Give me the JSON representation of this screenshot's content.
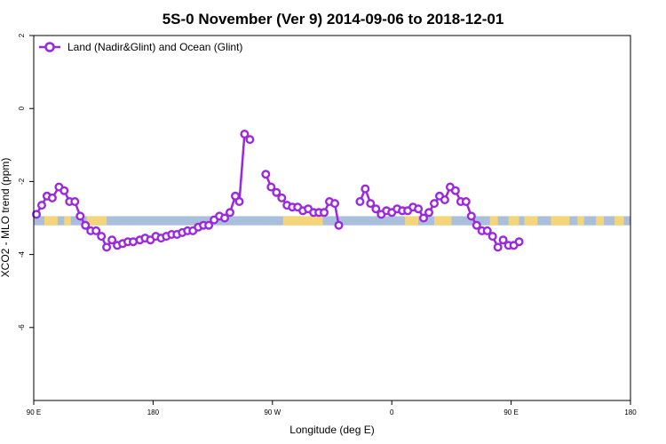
{
  "chart_data": {
    "type": "line",
    "title": "5S-0 November (Ver 9)   2014-09-06 to 2018-12-01",
    "xlabel": "Longitude (deg E)",
    "ylabel": "XCO2 - MLO trend (ppm)",
    "x_ticks": [
      {
        "value": 90,
        "label": "90 E"
      },
      {
        "value": 180,
        "label": "180"
      },
      {
        "value": 270,
        "label": "90 W"
      },
      {
        "value": 360,
        "label": "0"
      },
      {
        "value": 450,
        "label": "90 E"
      },
      {
        "value": 540,
        "label": "180"
      }
    ],
    "y_ticks": [
      {
        "value": 2,
        "label": "2"
      },
      {
        "value": 0,
        "label": "0"
      },
      {
        "value": -2,
        "label": "-2"
      },
      {
        "value": -4,
        "label": "-4"
      },
      {
        "value": -6,
        "label": "-6"
      }
    ],
    "xlim": [
      90,
      540
    ],
    "ylim": [
      -8,
      2
    ],
    "legend": {
      "position": "top-left",
      "entries": [
        "Land (Nadir&Glint) and Ocean (Glint)"
      ]
    },
    "colors": {
      "series": "#9b27e0",
      "ocean_band": "#a9bfdc",
      "land_band": "#f5d57a"
    },
    "band": {
      "y_top": -2.95,
      "y_bottom": -3.2
    },
    "land_segments": [
      [
        98,
        108
      ],
      [
        113,
        118
      ],
      [
        130,
        145
      ],
      [
        278,
        308
      ],
      [
        370,
        380
      ],
      [
        392,
        405
      ],
      [
        434,
        440
      ],
      [
        448,
        456
      ],
      [
        460,
        470
      ],
      [
        480,
        494
      ],
      [
        500,
        505
      ],
      [
        514,
        520
      ],
      [
        528,
        535
      ]
    ],
    "series": [
      {
        "name": "Land (Nadir&Glint) and Ocean (Glint)",
        "segments": [
          [
            [
              92,
              -2.9
            ],
            [
              96,
              -2.65
            ],
            [
              100,
              -2.4
            ],
            [
              104,
              -2.45
            ],
            [
              109,
              -2.15
            ],
            [
              113,
              -2.25
            ],
            [
              117,
              -2.55
            ],
            [
              121,
              -2.55
            ],
            [
              125,
              -2.95
            ],
            [
              129,
              -3.2
            ],
            [
              133,
              -3.35
            ],
            [
              137,
              -3.35
            ],
            [
              141,
              -3.5
            ],
            [
              145,
              -3.8
            ],
            [
              149,
              -3.6
            ],
            [
              153,
              -3.75
            ],
            [
              157,
              -3.7
            ],
            [
              161,
              -3.65
            ],
            [
              165,
              -3.65
            ],
            [
              170,
              -3.6
            ],
            [
              174,
              -3.55
            ],
            [
              178,
              -3.6
            ],
            [
              182,
              -3.5
            ],
            [
              186,
              -3.55
            ],
            [
              190,
              -3.5
            ],
            [
              194,
              -3.45
            ],
            [
              198,
              -3.45
            ],
            [
              202,
              -3.4
            ],
            [
              206,
              -3.35
            ],
            [
              210,
              -3.35
            ],
            [
              214,
              -3.25
            ],
            [
              218,
              -3.2
            ],
            [
              222,
              -3.2
            ],
            [
              226,
              -3.05
            ],
            [
              230,
              -2.95
            ],
            [
              234,
              -3.0
            ],
            [
              238,
              -2.85
            ],
            [
              242,
              -2.4
            ],
            [
              245,
              -2.55
            ],
            [
              249,
              -0.7
            ],
            [
              253,
              -0.85
            ]
          ],
          [
            [
              265,
              -1.8
            ],
            [
              269,
              -2.15
            ],
            [
              273,
              -2.3
            ],
            [
              277,
              -2.45
            ],
            [
              281,
              -2.65
            ],
            [
              285,
              -2.7
            ],
            [
              289,
              -2.7
            ],
            [
              293,
              -2.8
            ],
            [
              297,
              -2.75
            ],
            [
              301,
              -2.85
            ],
            [
              305,
              -2.85
            ],
            [
              309,
              -2.85
            ],
            [
              313,
              -2.55
            ],
            [
              317,
              -2.6
            ],
            [
              320,
              -3.2
            ]
          ],
          [
            [
              336,
              -2.55
            ],
            [
              340,
              -2.2
            ],
            [
              344,
              -2.6
            ],
            [
              348,
              -2.75
            ],
            [
              352,
              -2.9
            ],
            [
              356,
              -2.8
            ],
            [
              360,
              -2.85
            ],
            [
              364,
              -2.75
            ],
            [
              368,
              -2.8
            ],
            [
              372,
              -2.8
            ],
            [
              376,
              -2.7
            ],
            [
              380,
              -2.75
            ],
            [
              384,
              -3.0
            ],
            [
              388,
              -2.85
            ],
            [
              392,
              -2.6
            ],
            [
              396,
              -2.4
            ],
            [
              400,
              -2.5
            ],
            [
              404,
              -2.15
            ],
            [
              408,
              -2.25
            ],
            [
              412,
              -2.55
            ],
            [
              416,
              -2.55
            ],
            [
              420,
              -2.95
            ],
            [
              424,
              -3.2
            ],
            [
              428,
              -3.35
            ],
            [
              432,
              -3.35
            ],
            [
              436,
              -3.5
            ],
            [
              440,
              -3.8
            ],
            [
              444,
              -3.6
            ],
            [
              448,
              -3.75
            ],
            [
              452,
              -3.75
            ],
            [
              456,
              -3.65
            ]
          ]
        ]
      }
    ]
  }
}
